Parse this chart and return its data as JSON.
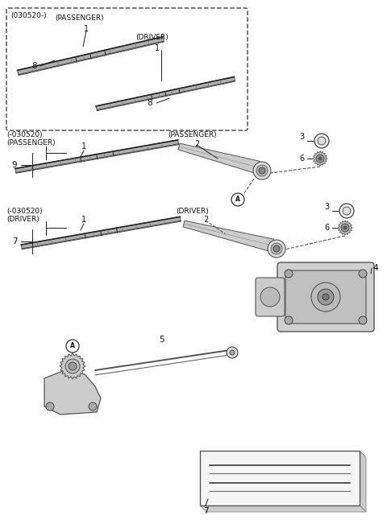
{
  "bg_color": "#ffffff",
  "lc": "#2a2a2a",
  "fig_w": 4.8,
  "fig_h": 6.56,
  "dpi": 100,
  "box_label": "(030520-)",
  "parts": {
    "1a": "1",
    "1b": "1",
    "2a": "2",
    "2b": "2",
    "3a": "3",
    "3b": "3",
    "4": "4",
    "5": "5",
    "6a": "6",
    "6b": "6",
    "7a": "7",
    "7b": "7",
    "8a": "8",
    "8b": "8",
    "9": "9"
  },
  "gray_light": "#d8d8d8",
  "gray_mid": "#aaaaaa",
  "gray_dark": "#666666",
  "gray_blade": "#b0b0b0"
}
